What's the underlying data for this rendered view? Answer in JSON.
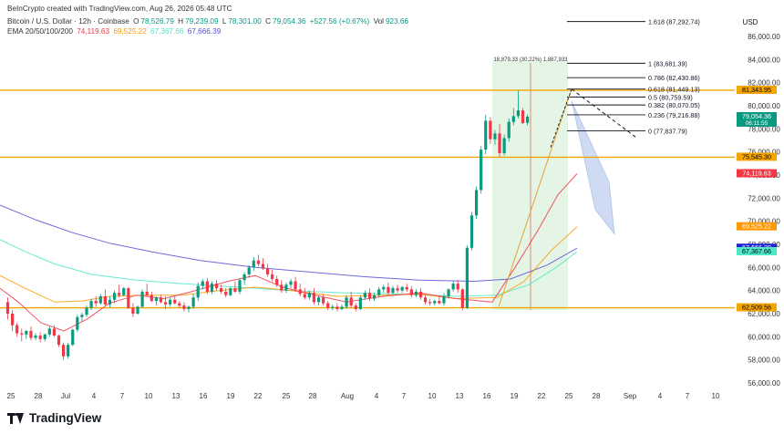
{
  "header": {
    "created_by": "BeInCrypto created with TradingView.com, Aug 26, 2026 05:48 UTC",
    "symbol": "Bitcoin / U.S. Dollar · 12h · Coinbase",
    "ohlc": [
      {
        "k": "O",
        "v": "78,526.79"
      },
      {
        "k": "H",
        "v": "79,239.09"
      },
      {
        "k": "L",
        "v": "78,301.00"
      },
      {
        "k": "C",
        "v": "79,054.36"
      }
    ],
    "change": "+527.56 (+0.67%)",
    "volume_label": "Vol",
    "volume": "923.66",
    "ema_label": "EMA 20/50/100/200",
    "ema_values": [
      "74,119.63",
      "69,525.22",
      "67,367.66",
      "67,666.39"
    ]
  },
  "colors": {
    "up": "#089981",
    "down": "#f23645",
    "level": "#f5a500",
    "ema20": "#f23645",
    "ema50": "#ff9800",
    "ema100": "#4ee8c8",
    "ema200": "#5350d4",
    "zone": "#dff2df",
    "projection": "#c6d5f0"
  },
  "brand": "TradingView",
  "chart_data": {
    "type": "candlestick",
    "currency": "USD",
    "timeframe": "12h",
    "ylim": [
      55000,
      88000
    ],
    "y_ticks": [
      "86,000.00",
      "84,000.00",
      "82,000.00",
      "80,000.00",
      "78,000.00",
      "76,000.00",
      "74,000.00",
      "72,000.00",
      "70,000.00",
      "68,000.00",
      "66,000.00",
      "64,000.00",
      "62,000.00",
      "60,000.00",
      "58,000.00",
      "56,000.00"
    ],
    "x_ticks": [
      "25",
      "28",
      "Jul",
      "4",
      "7",
      "10",
      "13",
      "16",
      "19",
      "22",
      "25",
      "28",
      "Aug",
      "4",
      "7",
      "10",
      "13",
      "16",
      "19",
      "22",
      "25",
      "28",
      "Sep",
      "4",
      "7",
      "10"
    ],
    "ohlc_approx": [
      [
        63000,
        63400,
        61500,
        62000
      ],
      [
        62000,
        62300,
        60500,
        61000
      ],
      [
        61000,
        61200,
        60000,
        60300
      ],
      [
        60300,
        60700,
        59600,
        60200
      ],
      [
        60200,
        60600,
        59800,
        60500
      ],
      [
        60500,
        60900,
        59700,
        59900
      ],
      [
        59900,
        60300,
        59700,
        60100
      ],
      [
        60100,
        60400,
        59500,
        59800
      ],
      [
        59800,
        60300,
        59600,
        60200
      ],
      [
        60200,
        60900,
        60000,
        60700
      ],
      [
        60700,
        61000,
        60000,
        60100
      ],
      [
        60100,
        60200,
        59100,
        59300
      ],
      [
        59300,
        59500,
        58000,
        58300
      ],
      [
        58300,
        59500,
        58100,
        59300
      ],
      [
        59300,
        60700,
        59200,
        60600
      ],
      [
        60600,
        61900,
        60400,
        61700
      ],
      [
        61700,
        62100,
        61300,
        61900
      ],
      [
        61900,
        62700,
        61700,
        62500
      ],
      [
        62500,
        63300,
        62300,
        63100
      ],
      [
        63100,
        63500,
        62600,
        62900
      ],
      [
        62900,
        63700,
        62800,
        63500
      ],
      [
        63500,
        64100,
        62700,
        62800
      ],
      [
        62800,
        63500,
        62500,
        63200
      ],
      [
        63200,
        64000,
        62900,
        63800
      ],
      [
        63800,
        64500,
        63400,
        63600
      ],
      [
        63600,
        64300,
        63500,
        64200
      ],
      [
        64200,
        64300,
        62400,
        62500
      ],
      [
        62500,
        62900,
        61700,
        62000
      ],
      [
        62000,
        62700,
        61900,
        62600
      ],
      [
        62600,
        64100,
        62500,
        63900
      ],
      [
        63900,
        64600,
        63500,
        63600
      ],
      [
        63600,
        63900,
        63000,
        63100
      ],
      [
        63100,
        63500,
        62700,
        63400
      ],
      [
        63400,
        63600,
        62900,
        63000
      ],
      [
        63000,
        63500,
        62400,
        62800
      ],
      [
        62800,
        63400,
        62600,
        63200
      ],
      [
        63200,
        63500,
        62800,
        62900
      ],
      [
        62900,
        63100,
        62500,
        62700
      ],
      [
        62700,
        63000,
        62200,
        62400
      ],
      [
        62400,
        62700,
        62100,
        62600
      ],
      [
        62600,
        63700,
        62400,
        63400
      ],
      [
        63400,
        64700,
        63100,
        64400
      ],
      [
        64400,
        65000,
        64100,
        64800
      ],
      [
        64800,
        65100,
        63700,
        63900
      ],
      [
        63900,
        64800,
        63700,
        64600
      ],
      [
        64600,
        64900,
        64000,
        64200
      ],
      [
        64200,
        64500,
        63700,
        63900
      ],
      [
        63900,
        64200,
        63400,
        63600
      ],
      [
        63600,
        64300,
        63500,
        64200
      ],
      [
        64200,
        64800,
        63800,
        63900
      ],
      [
        63900,
        65100,
        63700,
        64900
      ],
      [
        64900,
        65600,
        64500,
        65400
      ],
      [
        65400,
        66200,
        65100,
        66000
      ],
      [
        66000,
        66900,
        65700,
        66600
      ],
      [
        66600,
        67100,
        66100,
        66300
      ],
      [
        66300,
        66800,
        65800,
        65900
      ],
      [
        65900,
        66300,
        65200,
        65400
      ],
      [
        65400,
        65800,
        64800,
        65000
      ],
      [
        65000,
        65300,
        64300,
        64500
      ],
      [
        64500,
        64900,
        63800,
        64000
      ],
      [
        64000,
        64700,
        63800,
        64500
      ],
      [
        64500,
        65000,
        64200,
        64800
      ],
      [
        64800,
        65200,
        63900,
        64100
      ],
      [
        64100,
        64600,
        63500,
        63700
      ],
      [
        63700,
        64200,
        63200,
        63400
      ],
      [
        63400,
        64000,
        63200,
        63800
      ],
      [
        63800,
        64200,
        62800,
        63000
      ],
      [
        63000,
        63600,
        62700,
        63400
      ],
      [
        63400,
        63700,
        62700,
        62900
      ],
      [
        62900,
        63100,
        62300,
        62500
      ],
      [
        62500,
        62800,
        62300,
        62600
      ],
      [
        62600,
        62900,
        62200,
        62400
      ],
      [
        62400,
        62800,
        62300,
        62600
      ],
      [
        62600,
        63600,
        62400,
        63400
      ],
      [
        63400,
        63900,
        62500,
        62700
      ],
      [
        62700,
        62900,
        62200,
        62400
      ],
      [
        62400,
        63600,
        62300,
        63400
      ],
      [
        63400,
        64000,
        63200,
        63800
      ],
      [
        63800,
        64200,
        63100,
        63300
      ],
      [
        63300,
        63800,
        63100,
        63600
      ],
      [
        63600,
        64300,
        63400,
        64100
      ],
      [
        64100,
        64500,
        63800,
        64300
      ],
      [
        64300,
        64700,
        63600,
        63800
      ],
      [
        63800,
        64400,
        63700,
        64200
      ],
      [
        64200,
        64500,
        63800,
        64000
      ],
      [
        64000,
        64400,
        63800,
        64300
      ],
      [
        64300,
        64600,
        63900,
        64100
      ],
      [
        64100,
        64400,
        63400,
        63600
      ],
      [
        63600,
        64100,
        63400,
        63900
      ],
      [
        63900,
        64200,
        63200,
        63400
      ],
      [
        63400,
        63600,
        62800,
        63000
      ],
      [
        63000,
        63300,
        62700,
        62900
      ],
      [
        62900,
        63200,
        62700,
        63100
      ],
      [
        63100,
        63500,
        62800,
        62900
      ],
      [
        62900,
        63800,
        62700,
        63500
      ],
      [
        63500,
        64200,
        63300,
        64100
      ],
      [
        64100,
        64800,
        63900,
        64600
      ],
      [
        64600,
        64900,
        63800,
        64100
      ],
      [
        64100,
        64200,
        62300,
        62500
      ],
      [
        62500,
        67900,
        62400,
        67700
      ],
      [
        67700,
        70800,
        67500,
        70500
      ],
      [
        70500,
        73000,
        70200,
        72700
      ],
      [
        72700,
        76500,
        72400,
        76200
      ],
      [
        76200,
        79200,
        75800,
        78700
      ],
      [
        78700,
        79000,
        76700,
        77100
      ],
      [
        77100,
        77900,
        76600,
        77600
      ],
      [
        77600,
        78400,
        75600,
        75900
      ],
      [
        75900,
        77500,
        75700,
        77200
      ],
      [
        77200,
        78900,
        76900,
        78600
      ],
      [
        78600,
        79800,
        78300,
        79100
      ],
      [
        79100,
        81300,
        78900,
        79600
      ],
      [
        79600,
        79800,
        78400,
        78500
      ],
      [
        78526.79,
        79239.09,
        78301.0,
        79054.36
      ]
    ],
    "ema_lines": [
      {
        "name": "EMA 20",
        "values": "approx",
        "last": 74119.63
      },
      {
        "name": "EMA 50",
        "values": "approx",
        "last": 69525.22
      },
      {
        "name": "EMA 100",
        "values": "approx",
        "last": 67367.66
      },
      {
        "name": "EMA 200",
        "values": "approx",
        "last": 67666.39
      }
    ],
    "fib_levels": [
      {
        "label": "1.618 (87,292.74)",
        "price": 87292.74
      },
      {
        "label": "1 (83,681.39)",
        "price": 83681.39
      },
      {
        "label": "0.786 (82,430.86)",
        "price": 82430.86
      },
      {
        "label": "0.618 (81,449.13)",
        "price": 81449.13
      },
      {
        "label": "0.5 (80,759.59)",
        "price": 80759.59
      },
      {
        "label": "0.382 (80,070.05)",
        "price": 80070.05
      },
      {
        "label": "0.236 (79,216.88)",
        "price": 79216.88
      },
      {
        "label": "0 (77,837.79)",
        "price": 77837.79
      }
    ],
    "horizontal_levels": [
      {
        "price": 81343.95,
        "label": "81,343.95"
      },
      {
        "price": 75545.3,
        "label": "75,545.30"
      },
      {
        "price": 62509.56,
        "label": "62,509.56"
      }
    ],
    "price_tags": [
      {
        "price": 81343.95,
        "text": "81,343.95",
        "bg": "#f5a500",
        "fg": "#000000"
      },
      {
        "price": 79054.36,
        "text": "79,054.36",
        "sub": "06:11:55",
        "bg": "#089981",
        "fg": "#ffffff"
      },
      {
        "price": 75545.3,
        "text": "75,545.30",
        "bg": "#f5a500",
        "fg": "#000000"
      },
      {
        "price": 74119.63,
        "text": "74,119.63",
        "bg": "#f23645",
        "fg": "#ffffff"
      },
      {
        "price": 69525.22,
        "text": "69,525.22",
        "bg": "#ff9800",
        "fg": "#ffffff"
      },
      {
        "price": 67666.39,
        "text": "67,666.39",
        "bg": "#1f23d6",
        "fg": "#ffffff"
      },
      {
        "price": 67367.66,
        "text": "67,367.66",
        "bg": "#4ee8c8",
        "fg": "#000000"
      },
      {
        "price": 62509.56,
        "text": "62,509.56",
        "bg": "#f5a500",
        "fg": "#000000"
      }
    ],
    "measure_label": "18,879.33 (30.22%) 1,887,933"
  }
}
